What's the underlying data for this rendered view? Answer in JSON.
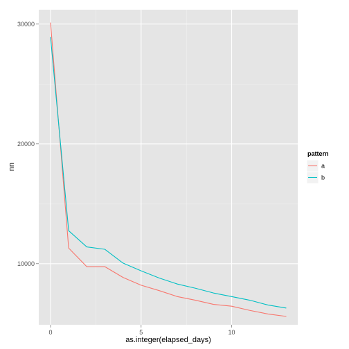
{
  "chart_data": {
    "type": "line",
    "xlabel": "as.integer(elapsed_days)",
    "ylabel": "nn",
    "xlim": [
      -0.65,
      13.65
    ],
    "ylim": [
      4900,
      31200
    ],
    "x_ticks": [
      0,
      5,
      10
    ],
    "x_tick_labels": [
      "0",
      "5",
      "10"
    ],
    "y_ticks": [
      10000,
      20000,
      30000
    ],
    "y_tick_labels": [
      "10000",
      "20000",
      "30000"
    ],
    "grid": true,
    "legend": {
      "title": "pattern",
      "position": "right"
    },
    "series": [
      {
        "name": "a",
        "color": "#F8766D",
        "x": [
          0,
          1,
          2,
          3,
          4,
          5,
          6,
          7,
          8,
          9,
          10,
          11,
          12,
          13
        ],
        "values": [
          30100,
          11300,
          9750,
          9750,
          8850,
          8200,
          7750,
          7250,
          6950,
          6600,
          6450,
          6100,
          5800,
          5600
        ]
      },
      {
        "name": "b",
        "color": "#00BFC4",
        "x": [
          0,
          1,
          2,
          3,
          4,
          5,
          6,
          7,
          8,
          9,
          10,
          11,
          12,
          13
        ],
        "values": [
          28900,
          12750,
          11400,
          11200,
          10050,
          9400,
          8800,
          8300,
          7950,
          7550,
          7250,
          6950,
          6550,
          6300
        ]
      }
    ]
  }
}
